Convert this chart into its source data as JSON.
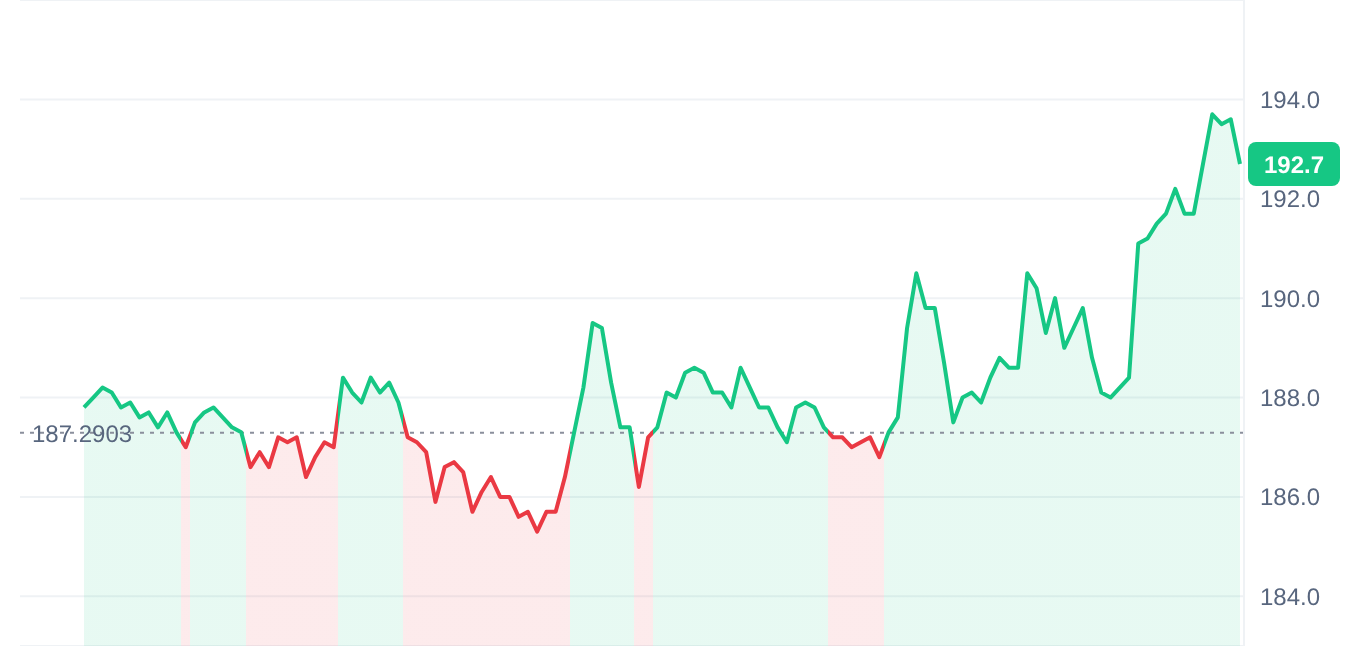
{
  "chart_data": {
    "type": "area",
    "categories": [
      null,
      null,
      null,
      null,
      null,
      null,
      null,
      null,
      null,
      null,
      null,
      null,
      null,
      null,
      null,
      null,
      null,
      null,
      null,
      null,
      null,
      null,
      null,
      null,
      null,
      null,
      null,
      null,
      null,
      null,
      null,
      null,
      null,
      null,
      null,
      null,
      null,
      null,
      null,
      null,
      null,
      null,
      null,
      null,
      null,
      null,
      null,
      null,
      null,
      null,
      null,
      null,
      null,
      null,
      null,
      null,
      null,
      null,
      null,
      null,
      null,
      null,
      null,
      null,
      null,
      null,
      null,
      null,
      null,
      null,
      null,
      null,
      null,
      null,
      null,
      null,
      null,
      null,
      null,
      null,
      null,
      null,
      null,
      null,
      null,
      null,
      null,
      null,
      null,
      null,
      null,
      null,
      null,
      null,
      null,
      null,
      null,
      null,
      null,
      null,
      null,
      null,
      null,
      null,
      null,
      null,
      null,
      null,
      null,
      null,
      null,
      null,
      null,
      null,
      null,
      null,
      null,
      null,
      null,
      null,
      null,
      null,
      null,
      null,
      null,
      null
    ],
    "series": [
      {
        "values": [
          187.8,
          188.0,
          188.2,
          188.1,
          187.8,
          187.9,
          187.6,
          187.7,
          187.4,
          187.7,
          187.3,
          187.0,
          187.5,
          187.7,
          187.8,
          187.6,
          187.4,
          187.3,
          186.6,
          186.9,
          186.6,
          187.2,
          187.1,
          187.2,
          186.4,
          186.8,
          187.1,
          187.0,
          188.4,
          188.1,
          187.9,
          188.4,
          188.1,
          188.3,
          187.9,
          187.2,
          187.1,
          186.9,
          185.9,
          186.6,
          186.7,
          186.5,
          185.7,
          186.1,
          186.4,
          186.0,
          186.0,
          185.6,
          185.7,
          185.3,
          185.7,
          185.7,
          186.4,
          187.3,
          188.2,
          189.5,
          189.4,
          188.3,
          187.4,
          187.4,
          186.2,
          187.2,
          187.4,
          188.1,
          188.0,
          188.5,
          188.6,
          188.5,
          188.1,
          188.1,
          187.8,
          188.6,
          188.2,
          187.8,
          187.8,
          187.4,
          187.1,
          187.8,
          187.9,
          187.8,
          187.4,
          187.2,
          187.2,
          187.0,
          187.1,
          187.2,
          186.8,
          187.3,
          187.6,
          189.4,
          190.5,
          189.8,
          189.8,
          188.7,
          187.5,
          188.0,
          188.1,
          187.9,
          188.4,
          188.8,
          188.6,
          188.6,
          190.5,
          190.2,
          189.3,
          190.0,
          189.0,
          189.4,
          189.8,
          188.8,
          188.1,
          188.0,
          188.2,
          188.4,
          191.1,
          191.2,
          191.5,
          191.7,
          192.2,
          191.7,
          191.7,
          192.7,
          193.7,
          193.5,
          193.6,
          192.7
        ],
        "colors": [
          "#16c784",
          "#16c784",
          "#16c784",
          "#16c784",
          "#16c784",
          "#16c784",
          "#16c784",
          "#16c784",
          "#16c784",
          "#16c784",
          "#16c784",
          "#ea3943",
          "#16c784",
          "#16c784",
          "#16c784",
          "#16c784",
          "#16c784",
          "#16c784",
          "#ea3943",
          "#ea3943",
          "#ea3943",
          "#ea3943",
          "#ea3943",
          "#ea3943",
          "#ea3943",
          "#ea3943",
          "#ea3943",
          "#ea3943",
          "#16c784",
          "#16c784",
          "#16c784",
          "#16c784",
          "#16c784",
          "#16c784",
          "#16c784",
          "#ea3943",
          "#ea3943",
          "#ea3943",
          "#ea3943",
          "#ea3943",
          "#ea3943",
          "#ea3943",
          "#ea3943",
          "#ea3943",
          "#ea3943",
          "#ea3943",
          "#ea3943",
          "#ea3943",
          "#ea3943",
          "#ea3943",
          "#ea3943",
          "#ea3943",
          "#ea3943",
          "#16c784",
          "#16c784",
          "#16c784",
          "#16c784",
          "#16c784",
          "#16c784",
          "#16c784",
          "#ea3943",
          "#ea3943",
          "#16c784",
          "#16c784",
          "#16c784",
          "#16c784",
          "#16c784",
          "#16c784",
          "#16c784",
          "#16c784",
          "#16c784",
          "#16c784",
          "#16c784",
          "#16c784",
          "#16c784",
          "#16c784",
          "#16c784",
          "#16c784",
          "#16c784",
          "#16c784",
          "#16c784",
          "#ea3943",
          "#ea3943",
          "#ea3943",
          "#ea3943",
          "#ea3943",
          "#ea3943",
          "#16c784",
          "#16c784",
          "#16c784",
          "#16c784",
          "#16c784",
          "#16c784",
          "#16c784",
          "#16c784",
          "#16c784",
          "#16c784",
          "#16c784",
          "#16c784",
          "#16c784",
          "#16c784",
          "#16c784",
          "#16c784",
          "#16c784",
          "#16c784",
          "#16c784",
          "#16c784",
          "#16c784",
          "#16c784",
          "#16c784",
          "#16c784",
          "#16c784",
          "#16c784",
          "#16c784",
          "#16c784",
          "#16c784",
          "#16c784",
          "#16c784",
          "#16c784",
          "#16c784",
          "#16c784",
          "#16c784",
          "#16c784",
          "#16c784",
          "#16c784",
          "#16c784"
        ]
      }
    ],
    "ylim": [
      183,
      196
    ],
    "yticks": [
      {
        "value": 184,
        "label": "184.0"
      },
      {
        "value": 186,
        "label": "186.0"
      },
      {
        "value": 188,
        "label": "188.0"
      },
      {
        "value": 190,
        "label": "190.0"
      },
      {
        "value": 192,
        "label": "192.0"
      },
      {
        "value": 194,
        "label": "194.0"
      }
    ],
    "grid": "y",
    "line_style": "solid",
    "ref_lines": [
      {
        "axis": "y",
        "value": 187.2903,
        "label": "187.2903",
        "color": "#8a8f9c",
        "line_style": "dotted"
      }
    ],
    "annotations": [
      "192.7"
    ]
  }
}
